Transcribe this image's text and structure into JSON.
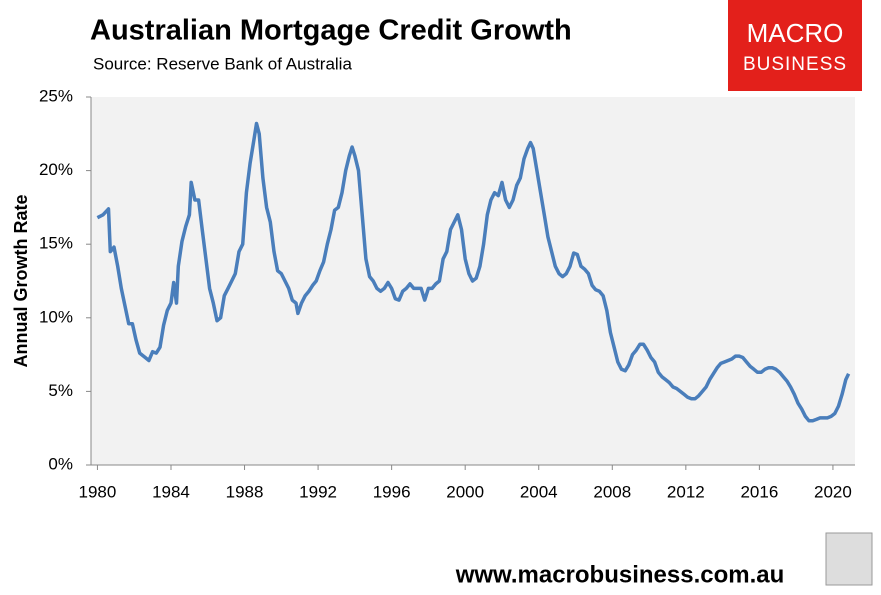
{
  "chart_data": {
    "type": "line",
    "title": "Australian Mortgage Credit Growth",
    "subtitle": "Source: Reserve Bank of Australia",
    "y_label": "Annual Growth Rate",
    "logo": [
      "MACRO",
      "BUSINESS"
    ],
    "footer": "www.macrobusiness.com.au",
    "xlim": [
      1979.65,
      2021.2
    ],
    "xticks": [
      1980,
      1984,
      1988,
      1992,
      1996,
      2000,
      2004,
      2008,
      2012,
      2016,
      2020
    ],
    "ylim": [
      0,
      25
    ],
    "yticks": [
      {
        "value": 0,
        "label": "0%"
      },
      {
        "value": 5,
        "label": "5%"
      },
      {
        "value": 10,
        "label": "10%"
      },
      {
        "value": 15,
        "label": "15%"
      },
      {
        "value": 20,
        "label": "20%"
      },
      {
        "value": 25,
        "label": "25%"
      }
    ],
    "grid": false,
    "series": [
      {
        "color": "#4a7ebb",
        "x": [
          1980.0,
          1980.3,
          1980.6,
          1980.7,
          1980.9,
          1981.1,
          1981.3,
          1981.5,
          1981.7,
          1981.9,
          1982.1,
          1982.3,
          1982.6,
          1982.8,
          1983.0,
          1983.2,
          1983.4,
          1983.6,
          1983.8,
          1984.0,
          1984.15,
          1984.3,
          1984.4,
          1984.6,
          1984.8,
          1985.0,
          1985.1,
          1985.3,
          1985.5,
          1985.7,
          1985.9,
          1986.1,
          1986.3,
          1986.5,
          1986.7,
          1986.9,
          1987.1,
          1987.3,
          1987.5,
          1987.7,
          1987.9,
          1988.1,
          1988.3,
          1988.5,
          1988.65,
          1988.8,
          1989.0,
          1989.2,
          1989.4,
          1989.6,
          1989.8,
          1990.0,
          1990.2,
          1990.4,
          1990.6,
          1990.8,
          1990.9,
          1991.1,
          1991.3,
          1991.5,
          1991.7,
          1991.9,
          1992.1,
          1992.3,
          1992.5,
          1992.7,
          1992.9,
          1993.1,
          1993.3,
          1993.5,
          1993.7,
          1993.85,
          1994.0,
          1994.2,
          1994.4,
          1994.6,
          1994.8,
          1995.0,
          1995.2,
          1995.4,
          1995.6,
          1995.8,
          1996.0,
          1996.2,
          1996.4,
          1996.6,
          1996.8,
          1997.0,
          1997.2,
          1997.4,
          1997.6,
          1997.8,
          1998.0,
          1998.2,
          1998.4,
          1998.6,
          1998.8,
          1999.0,
          1999.2,
          1999.4,
          1999.6,
          1999.8,
          2000.0,
          2000.2,
          2000.4,
          2000.6,
          2000.8,
          2001.0,
          2001.2,
          2001.4,
          2001.6,
          2001.8,
          2002.0,
          2002.2,
          2002.4,
          2002.6,
          2002.8,
          2003.0,
          2003.2,
          2003.4,
          2003.55,
          2003.7,
          2003.9,
          2004.1,
          2004.3,
          2004.5,
          2004.7,
          2004.9,
          2005.1,
          2005.3,
          2005.5,
          2005.7,
          2005.9,
          2006.1,
          2006.3,
          2006.5,
          2006.7,
          2006.9,
          2007.1,
          2007.3,
          2007.5,
          2007.7,
          2007.9,
          2008.1,
          2008.3,
          2008.5,
          2008.7,
          2008.9,
          2009.1,
          2009.3,
          2009.5,
          2009.7,
          2009.9,
          2010.1,
          2010.3,
          2010.5,
          2010.7,
          2010.9,
          2011.1,
          2011.3,
          2011.5,
          2011.7,
          2011.9,
          2012.1,
          2012.3,
          2012.5,
          2012.7,
          2012.9,
          2013.1,
          2013.3,
          2013.5,
          2013.7,
          2013.9,
          2014.1,
          2014.3,
          2014.5,
          2014.7,
          2014.9,
          2015.1,
          2015.3,
          2015.5,
          2015.7,
          2015.9,
          2016.1,
          2016.3,
          2016.5,
          2016.7,
          2016.9,
          2017.1,
          2017.3,
          2017.5,
          2017.7,
          2017.9,
          2018.1,
          2018.3,
          2018.5,
          2018.7,
          2018.9,
          2019.1,
          2019.3,
          2019.5,
          2019.7,
          2019.9,
          2020.1,
          2020.3,
          2020.5,
          2020.7,
          2020.85
        ],
        "values": [
          16.8,
          17.0,
          17.4,
          14.5,
          14.8,
          13.5,
          12.0,
          10.8,
          9.6,
          9.6,
          8.5,
          7.6,
          7.3,
          7.1,
          7.7,
          7.6,
          8.0,
          9.5,
          10.5,
          11.0,
          12.4,
          11.0,
          13.5,
          15.2,
          16.2,
          17.0,
          19.2,
          18.0,
          18.0,
          16.0,
          14.0,
          12.0,
          11.0,
          9.8,
          10.0,
          11.5,
          12.0,
          12.5,
          13.0,
          14.5,
          15.0,
          18.5,
          20.5,
          22.0,
          23.2,
          22.5,
          19.5,
          17.5,
          16.5,
          14.5,
          13.2,
          13.0,
          12.5,
          12.0,
          11.2,
          11.0,
          10.3,
          11.0,
          11.5,
          11.8,
          12.2,
          12.5,
          13.2,
          13.8,
          15.0,
          16.0,
          17.3,
          17.5,
          18.5,
          20.0,
          21.0,
          21.6,
          21.0,
          20.0,
          17.0,
          14.0,
          12.8,
          12.5,
          12.0,
          11.8,
          12.0,
          12.4,
          12.0,
          11.3,
          11.2,
          11.8,
          12.0,
          12.3,
          12.0,
          12.0,
          12.0,
          11.2,
          12.0,
          12.0,
          12.3,
          12.5,
          14.0,
          14.5,
          16.0,
          16.5,
          17.0,
          16.0,
          14.0,
          13.0,
          12.5,
          12.7,
          13.5,
          15.0,
          17.0,
          18.0,
          18.5,
          18.3,
          19.2,
          18.0,
          17.5,
          18.0,
          19.0,
          19.5,
          20.8,
          21.5,
          21.9,
          21.5,
          20.0,
          18.5,
          17.0,
          15.5,
          14.5,
          13.5,
          13.0,
          12.8,
          13.0,
          13.5,
          14.4,
          14.3,
          13.5,
          13.3,
          13.0,
          12.2,
          11.9,
          11.8,
          11.5,
          10.5,
          9.0,
          8.0,
          7.0,
          6.5,
          6.4,
          6.8,
          7.5,
          7.8,
          8.2,
          8.2,
          7.8,
          7.3,
          7.0,
          6.3,
          6.0,
          5.8,
          5.6,
          5.3,
          5.2,
          5.0,
          4.8,
          4.6,
          4.5,
          4.5,
          4.7,
          5.0,
          5.3,
          5.8,
          6.2,
          6.6,
          6.9,
          7.0,
          7.1,
          7.2,
          7.4,
          7.4,
          7.3,
          7.0,
          6.7,
          6.5,
          6.3,
          6.3,
          6.5,
          6.6,
          6.6,
          6.5,
          6.3,
          6.0,
          5.7,
          5.3,
          4.8,
          4.2,
          3.8,
          3.3,
          3.0,
          3.0,
          3.1,
          3.2,
          3.2,
          3.2,
          3.3,
          3.5,
          4.0,
          4.8,
          5.8,
          6.2
        ]
      }
    ]
  }
}
